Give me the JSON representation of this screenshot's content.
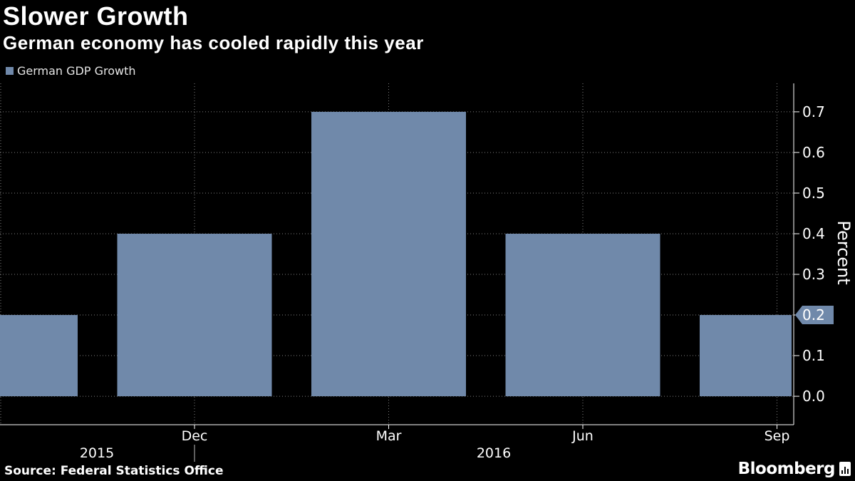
{
  "header": {
    "title": "Slower Growth",
    "subtitle": "German economy has cooled rapidly this year"
  },
  "legend": {
    "label": "German GDP Growth",
    "color": "#7089aa"
  },
  "chart_data": {
    "type": "bar",
    "title": "Slower Growth",
    "subtitle": "German economy has cooled rapidly this year",
    "ylabel": "Percent",
    "ylim": [
      -0.07,
      0.77
    ],
    "yticks": [
      "0.0",
      "0.1",
      "0.2",
      "0.3",
      "0.4",
      "0.5",
      "0.6",
      "0.7"
    ],
    "y_axis_side": "right",
    "grid": true,
    "categories": [
      "Sep 2015",
      "Dec 2015",
      "Mar 2016",
      "Jun 2016",
      "Sep 2016"
    ],
    "x_tick_labels": [
      "Dec",
      "Mar",
      "Jun",
      "Sep"
    ],
    "year_labels": [
      "2015",
      "2016"
    ],
    "series": [
      {
        "name": "German GDP Growth",
        "values": [
          0.2,
          0.4,
          0.7,
          0.4,
          0.2
        ],
        "color": "#7089aa"
      }
    ],
    "last_value_label": "0.2",
    "legend_position": "top-left"
  },
  "footer": {
    "source": "Source: Federal Statistics Office",
    "brand": "Bloomberg"
  },
  "colors": {
    "background": "#000000",
    "bar": "#7089aa",
    "grid": "#808080",
    "text": "#ffffff"
  }
}
